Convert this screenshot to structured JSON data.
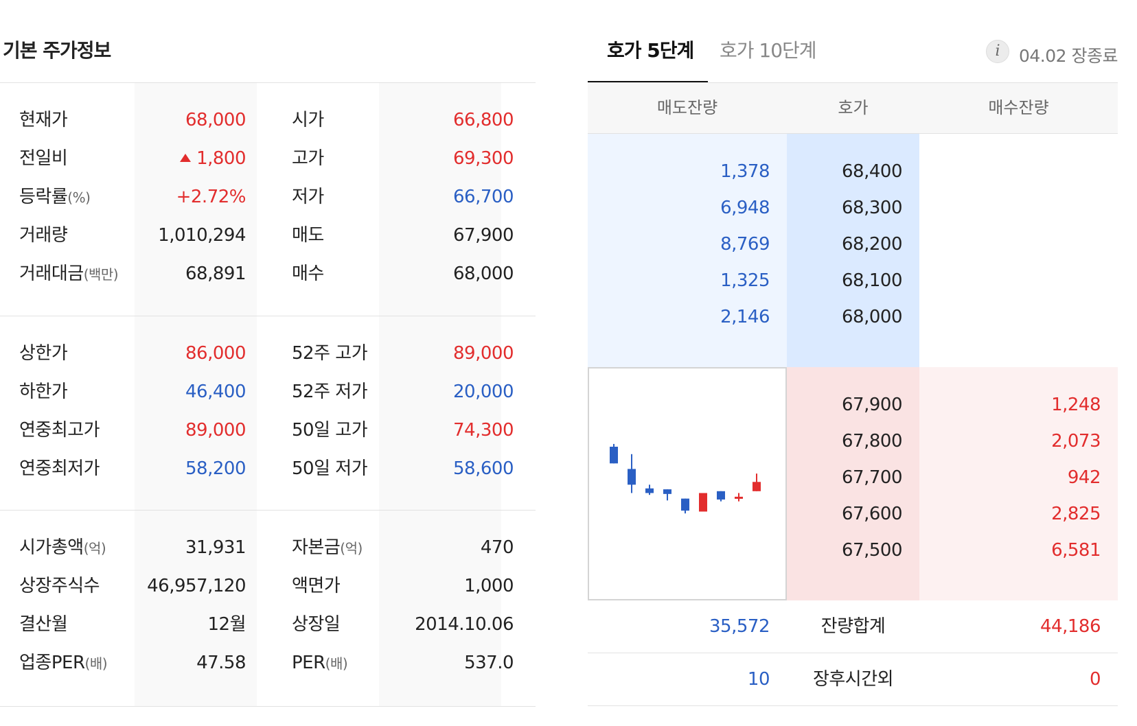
{
  "basic": {
    "title": "기본 주가정보",
    "sections": [
      {
        "rows": [
          {
            "label": "현재가",
            "unit": "",
            "value": "68,000",
            "color": "red",
            "label2": "시가",
            "unit2": "",
            "value2": "66,800",
            "color2": "red"
          },
          {
            "label": "전일비",
            "unit": "",
            "value": "1,800",
            "color": "red",
            "arrow": "up-triangle-icon",
            "label2": "고가",
            "unit2": "",
            "value2": "69,300",
            "color2": "red"
          },
          {
            "label": "등락률",
            "unit": "(%)",
            "value": "+2.72%",
            "color": "red",
            "label2": "저가",
            "unit2": "",
            "value2": "66,700",
            "color2": "blue"
          },
          {
            "label": "거래량",
            "unit": "",
            "value": "1,010,294",
            "color": "default",
            "label2": "매도",
            "unit2": "",
            "value2": "67,900",
            "color2": "default"
          },
          {
            "label": "거래대금",
            "unit": "(백만)",
            "value": "68,891",
            "color": "default",
            "label2": "매수",
            "unit2": "",
            "value2": "68,000",
            "color2": "default"
          }
        ]
      },
      {
        "rows": [
          {
            "label": "상한가",
            "unit": "",
            "value": "86,000",
            "color": "red",
            "label2": "52주 고가",
            "unit2": "",
            "value2": "89,000",
            "color2": "red"
          },
          {
            "label": "하한가",
            "unit": "",
            "value": "46,400",
            "color": "blue",
            "label2": "52주 저가",
            "unit2": "",
            "value2": "20,000",
            "color2": "blue"
          },
          {
            "label": "연중최고가",
            "unit": "",
            "value": "89,000",
            "color": "red",
            "label2": "50일 고가",
            "unit2": "",
            "value2": "74,300",
            "color2": "red"
          },
          {
            "label": "연중최저가",
            "unit": "",
            "value": "58,200",
            "color": "blue",
            "label2": "50일 저가",
            "unit2": "",
            "value2": "58,600",
            "color2": "blue"
          }
        ]
      },
      {
        "rows": [
          {
            "label": "시가총액",
            "unit": "(억)",
            "value": "31,931",
            "color": "default",
            "label2": "자본금",
            "unit2": "(억)",
            "value2": "470",
            "color2": "default"
          },
          {
            "label": "상장주식수",
            "unit": "",
            "value": "46,957,120",
            "color": "default",
            "label2": "액면가",
            "unit2": "",
            "value2": "1,000",
            "color2": "default"
          },
          {
            "label": "결산월",
            "unit": "",
            "value": "12월",
            "color": "default",
            "label2": "상장일",
            "unit2": "",
            "value2": "2014.10.06",
            "color2": "default"
          },
          {
            "label": "업종PER",
            "unit": "(배)",
            "value": "47.58",
            "color": "default",
            "label2": "PER",
            "unit2": "(배)",
            "value2": "537.0",
            "color2": "default"
          }
        ]
      }
    ]
  },
  "orderbook": {
    "tabs": [
      {
        "label": "호가 5단계",
        "active": true
      },
      {
        "label": "호가 10단계",
        "active": false
      }
    ],
    "info_icon": "info-icon",
    "status": "04.02 장종료",
    "headers": {
      "ask_qty": "매도잔량",
      "price": "호가",
      "bid_qty": "매수잔량"
    },
    "asks": [
      {
        "qty": "1,378",
        "price": "68,400"
      },
      {
        "qty": "6,948",
        "price": "68,300"
      },
      {
        "qty": "8,769",
        "price": "68,200"
      },
      {
        "qty": "1,325",
        "price": "68,100"
      },
      {
        "qty": "2,146",
        "price": "68,000"
      }
    ],
    "bids": [
      {
        "price": "67,900",
        "qty": "1,248"
      },
      {
        "price": "67,800",
        "qty": "2,073"
      },
      {
        "price": "67,700",
        "qty": "942"
      },
      {
        "price": "67,600",
        "qty": "2,825"
      },
      {
        "price": "67,500",
        "qty": "6,581"
      }
    ],
    "total": {
      "label": "잔량합계",
      "ask": "35,572",
      "bid": "44,186"
    },
    "after_hours": {
      "label": "장후시간외",
      "ask": "10",
      "bid": "0"
    },
    "colors": {
      "up": "#e22d2d",
      "down": "#2a5fc4",
      "ask_bg": "#eef5ff",
      "ask_price_bg": "#dbeaff",
      "bid_price_bg": "#fae3e3",
      "bid_bg": "#fdf1f1"
    },
    "mini_chart": {
      "type": "candlestick",
      "candles": [
        {
          "o": 80,
          "c": 62,
          "h": 83,
          "l": 62
        },
        {
          "o": 56,
          "c": 39,
          "h": 72,
          "l": 30
        },
        {
          "o": 35,
          "c": 30,
          "h": 39,
          "l": 28
        },
        {
          "o": 34,
          "c": 29,
          "h": 34,
          "l": 22
        },
        {
          "o": 24,
          "c": 11,
          "h": 24,
          "l": 8
        },
        {
          "o": 10,
          "c": 30,
          "h": 30,
          "l": 10
        },
        {
          "o": 32,
          "c": 23,
          "h": 32,
          "l": 21
        },
        {
          "o": 26,
          "c": 26,
          "h": 30,
          "l": 21
        },
        {
          "o": 32,
          "c": 42,
          "h": 51,
          "l": 32
        }
      ]
    }
  }
}
